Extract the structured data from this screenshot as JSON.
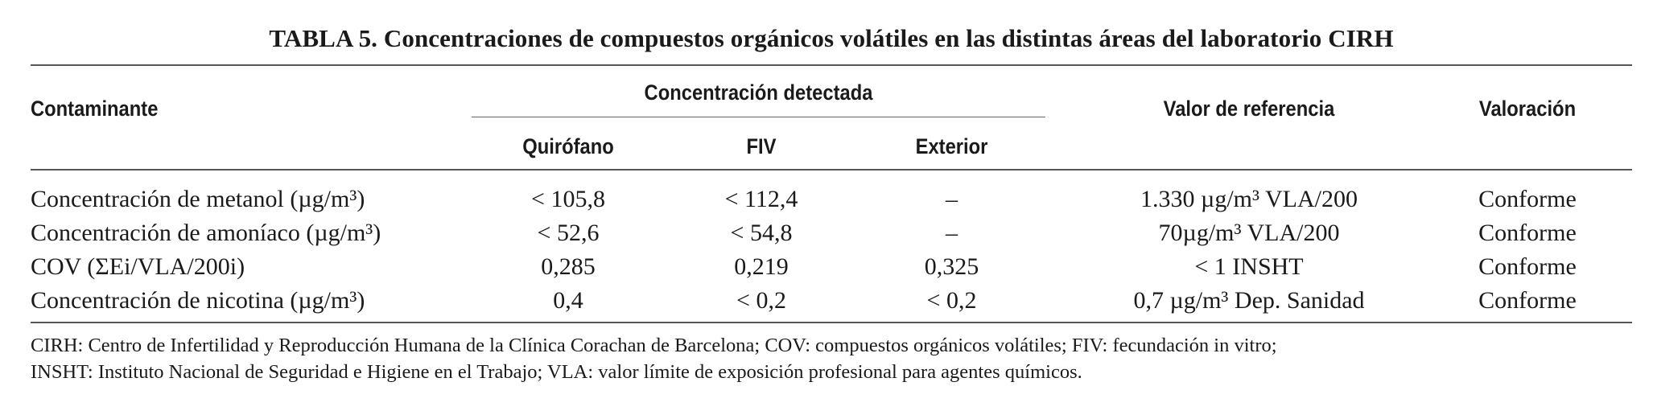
{
  "title": "TABLA 5. Concentraciones de compuestos orgánicos volátiles en las distintas áreas del laboratorio CIRH",
  "headers": {
    "contaminante": "Contaminante",
    "concentracion": "Concentración detectada",
    "quirofano": "Quirófano",
    "fiv": "FIV",
    "exterior": "Exterior",
    "referencia": "Valor de referencia",
    "valoracion": "Valoración"
  },
  "rows": [
    {
      "contaminante": "Concentración de metanol (µg/m³)",
      "quirofano": "< 105,8",
      "fiv": "< 112,4",
      "exterior": "–",
      "referencia": "1.330 µg/m³ VLA/200",
      "valoracion": "Conforme"
    },
    {
      "contaminante": "Concentración de amoníaco (µg/m³)",
      "quirofano": "< 52,6",
      "fiv": "< 54,8",
      "exterior": "–",
      "referencia": "70µg/m³ VLA/200",
      "valoracion": "Conforme"
    },
    {
      "contaminante": "COV (ΣEi/VLA/200i)",
      "quirofano": "0,285",
      "fiv": "0,219",
      "exterior": "0,325",
      "referencia": "< 1 INSHT",
      "valoracion": "Conforme"
    },
    {
      "contaminante": "Concentración de nicotina (µg/m³)",
      "quirofano": "0,4",
      "fiv": "< 0,2",
      "exterior": "< 0,2",
      "referencia": "0,7 µg/m³ Dep. Sanidad",
      "valoracion": "Conforme"
    }
  ],
  "notes": [
    "CIRH: Centro de Infertilidad y Reproducción Humana de la Clínica Corachan de Barcelona; COV: compuestos orgánicos volátiles; FIV: fecundación in vitro;",
    "INSHT: Instituto Nacional de Seguridad e Higiene en el Trabajo; VLA: valor límite de exposición profesional para agentes químicos."
  ]
}
